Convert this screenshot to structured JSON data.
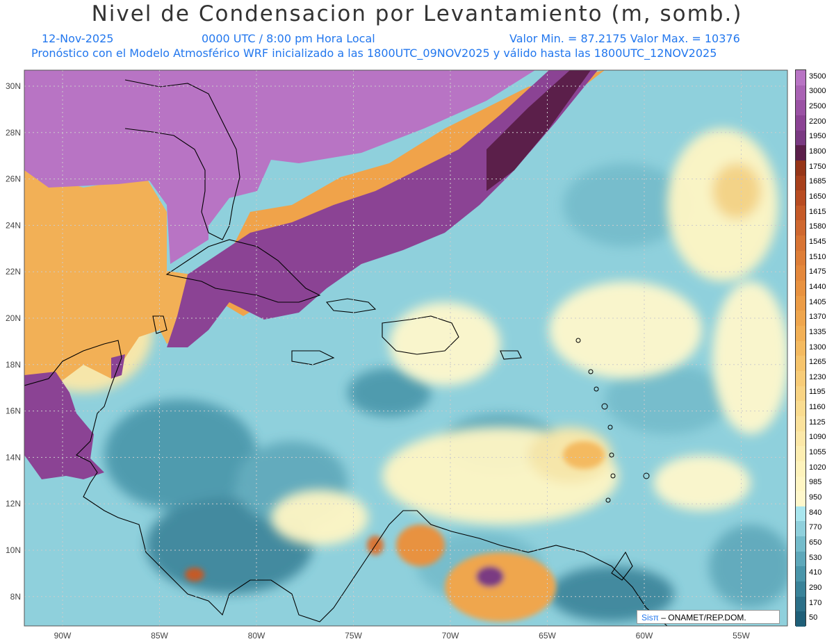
{
  "header": {
    "title": "Nivel de Condensacion por Levantamiento (m, somb.)",
    "date": "12-Nov-2025",
    "time": "0000 UTC / 8:00 pm Hora Local",
    "minmax": "Valor Min. = 87.2175   Valor Max. = 10376",
    "model": "Pronóstico con el Modelo Atmosférico WRF inicializado a las 1800UTC_09NOV2025 y válido hasta las  1800UTC_12NOV2025"
  },
  "axes": {
    "lon_labels": [
      "90W",
      "85W",
      "80W",
      "75W",
      "70W",
      "65W",
      "60W",
      "55W"
    ],
    "lat_labels": [
      "30N",
      "28N",
      "26N",
      "24N",
      "22N",
      "20N",
      "18N",
      "16N",
      "14N",
      "12N",
      "10N",
      "8N"
    ]
  },
  "legend": {
    "labels": [
      "3500",
      "3000",
      "2500",
      "2200",
      "1950",
      "1800",
      "1750",
      "1685",
      "1650",
      "1615",
      "1580",
      "1545",
      "1510",
      "1475",
      "1440",
      "1405",
      "1370",
      "1335",
      "1300",
      "1265",
      "1230",
      "1195",
      "1160",
      "1125",
      "1090",
      "1055",
      "1020",
      "985",
      "950",
      "840",
      "770",
      "650",
      "530",
      "410",
      "290",
      "170",
      "50"
    ],
    "colors": [
      "#b874c4",
      "#a963b4",
      "#9a52a4",
      "#8b4394",
      "#7a3a82",
      "#5b1f4a",
      "#963518",
      "#a8401c",
      "#b84c22",
      "#c55a28",
      "#cf6830",
      "#d87434",
      "#de7e38",
      "#e4883c",
      "#e89240",
      "#ec9c46",
      "#efa64e",
      "#f2b056",
      "#f4ba60",
      "#f6c46c",
      "#f8cc78",
      "#f9d484",
      "#fadc90",
      "#fbe29c",
      "#fce8a8",
      "#fdeeb2",
      "#fef3bc",
      "#fff6c4",
      "#fff8cc",
      "#a9e6ee",
      "#8fd0dc",
      "#74bccb",
      "#5ea8ba",
      "#4a96aa",
      "#3a8399",
      "#2c7088",
      "#1f5f78"
    ]
  },
  "map": {
    "background": "#8fd0dc",
    "coast_color": "#000000"
  },
  "credit": {
    "sis": "Sisπ",
    "text": "– ONAMET/REP.DOM."
  }
}
